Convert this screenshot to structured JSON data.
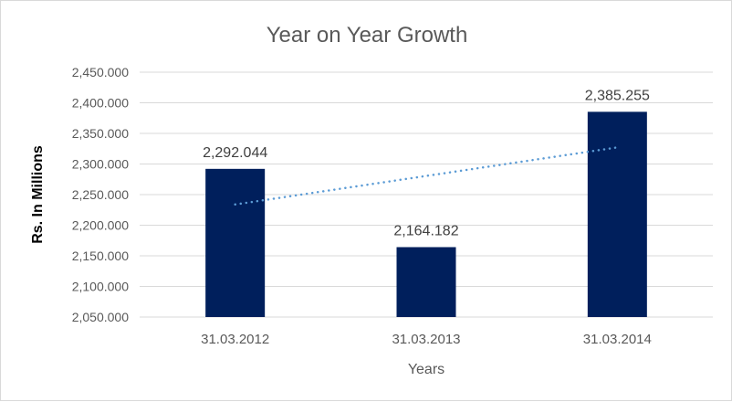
{
  "chart_data": {
    "type": "bar",
    "title": "Year on Year Growth",
    "xlabel": "Years",
    "ylabel": "Rs. In Millions",
    "categories": [
      "31.03.2012",
      "31.03.2013",
      "31.03.2014"
    ],
    "values": [
      2292.044,
      2164.182,
      2385.255
    ],
    "data_labels": [
      "2,292.044",
      "2,164.182",
      "2,385.255"
    ],
    "ylim": [
      2050,
      2450
    ],
    "yticks": [
      2050,
      2100,
      2150,
      2200,
      2250,
      2300,
      2350,
      2400,
      2450
    ],
    "ytick_labels": [
      "2,050.000",
      "2,100.000",
      "2,150.000",
      "2,200.000",
      "2,250.000",
      "2,300.000",
      "2,350.000",
      "2,400.000",
      "2,450.000"
    ],
    "grid": true,
    "trendline": {
      "type": "linear",
      "style": "dotted",
      "color": "#5B9BD5"
    },
    "bar_color": "#001F5C"
  }
}
